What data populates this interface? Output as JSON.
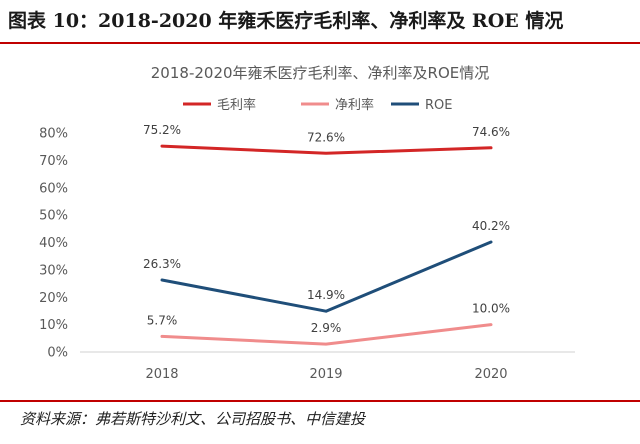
{
  "figure_title": "图表 10：2018-2020 年雍禾医疗毛利率、净利率及 ROE 情况",
  "source_note": "资料来源：弗若斯特沙利文、公司招股书、中信建投",
  "colors": {
    "rule": "#c00000"
  },
  "chart_data": {
    "type": "line",
    "title": "2018-2020年雍禾医疗毛利率、净利率及ROE情况",
    "categories": [
      "2018",
      "2019",
      "2020"
    ],
    "ylim": [
      0,
      80
    ],
    "yticks": [
      0,
      10,
      20,
      30,
      40,
      50,
      60,
      70,
      80
    ],
    "ytick_labels": [
      "0%",
      "10%",
      "20%",
      "30%",
      "40%",
      "50%",
      "60%",
      "70%",
      "80%"
    ],
    "legend_position": "top",
    "grid": false,
    "series": [
      {
        "name": "毛利率",
        "color": "#d32626",
        "values": [
          75.2,
          72.6,
          74.6
        ],
        "labels": [
          "75.2%",
          "72.6%",
          "74.6%"
        ]
      },
      {
        "name": "净利率",
        "color": "#f08c8c",
        "values": [
          5.7,
          2.9,
          10.0
        ],
        "labels": [
          "5.7%",
          "2.9%",
          "10.0%"
        ]
      },
      {
        "name": "ROE",
        "color": "#1f4e79",
        "values": [
          26.3,
          14.9,
          40.2
        ],
        "labels": [
          "26.3%",
          "14.9%",
          "40.2%"
        ]
      }
    ]
  }
}
